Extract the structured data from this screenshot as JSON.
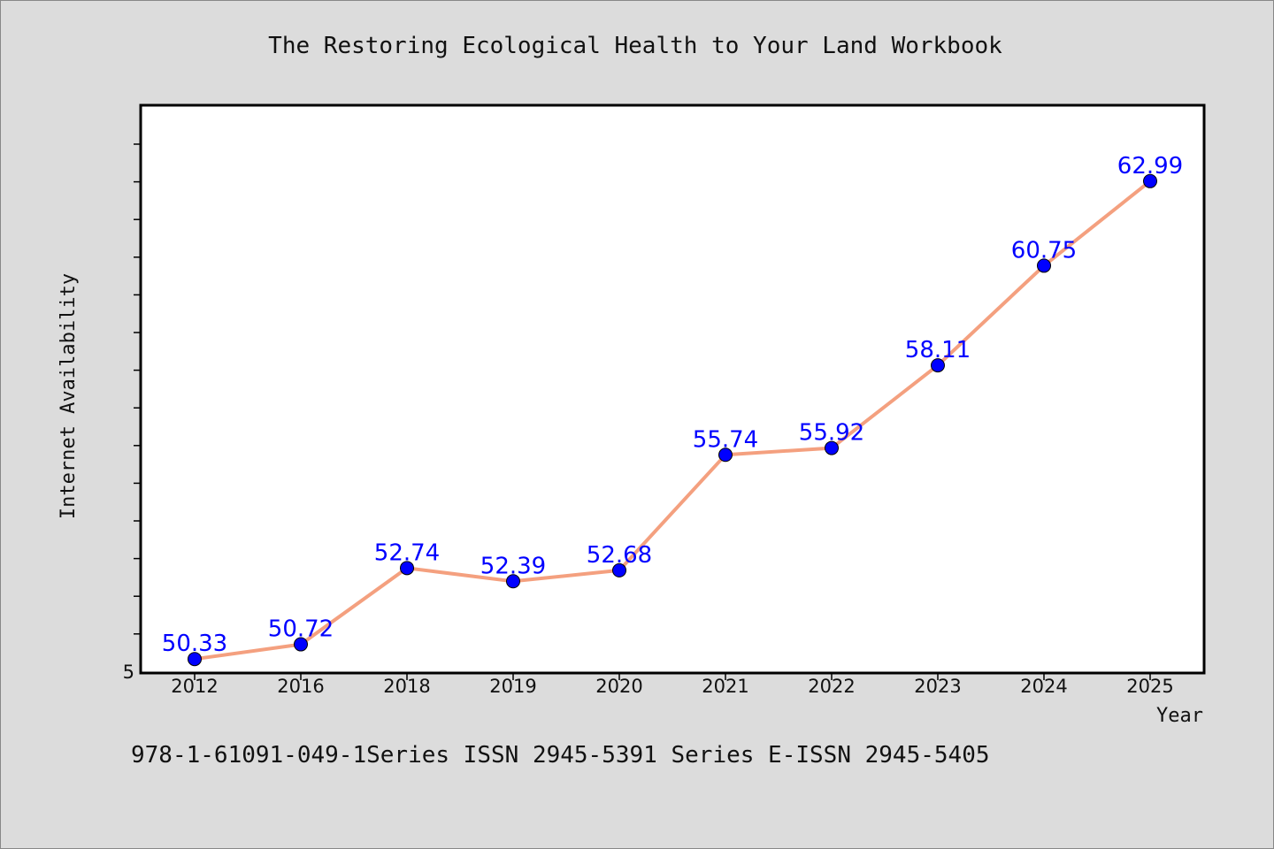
{
  "chart_data": {
    "type": "line",
    "title": "The Restoring Ecological Health to Your Land Workbook",
    "xlabel": "Year",
    "ylabel": "Internet Availability",
    "categories": [
      "2012",
      "2016",
      "2018",
      "2019",
      "2020",
      "2021",
      "2022",
      "2023",
      "2024",
      "2025"
    ],
    "series": [
      {
        "values": [
          50.33,
          50.72,
          52.74,
          52.39,
          52.68,
          55.74,
          55.92,
          58.11,
          60.75,
          62.99
        ]
      }
    ],
    "data_labels": [
      "50.33",
      "50.72",
      "52.74",
      "52.39",
      "52.68",
      "55.74",
      "55.92",
      "58.11",
      "60.75",
      "62.99"
    ],
    "y_tick_labels": [
      "5"
    ],
    "ylim": [
      49.96,
      65.0
    ],
    "grid": false,
    "line_color": "#f4a07f",
    "marker_color": "#0000ff",
    "label_color": "#0000ff",
    "plot_background": "#ffffff",
    "page_background": "#dcdcdc"
  },
  "footer": {
    "text": "978-1-61091-049-1Series ISSN 2945-5391 Series E-ISSN 2945-5405"
  }
}
